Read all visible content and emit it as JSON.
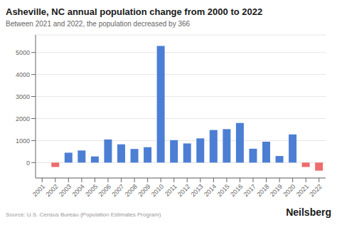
{
  "chart_data": {
    "type": "bar",
    "title": "Asheville, NC annual population change from 2000 to 2022",
    "subtitle": "Between 2021 and 2022, the population decreased by 366",
    "annotations": [
      "Source: U.S. Census Bureau (Population Estimates Program)",
      "Neilsberg"
    ],
    "categories": [
      "2001",
      "2002",
      "2003",
      "2004",
      "2005",
      "2006",
      "2007",
      "2008",
      "2009",
      "2010",
      "2011",
      "2012",
      "2013",
      "2014",
      "2015",
      "2016",
      "2017",
      "2018",
      "2019",
      "2020",
      "2021",
      "2022"
    ],
    "values": [
      0,
      -200,
      450,
      550,
      280,
      1050,
      830,
      620,
      700,
      5300,
      1020,
      870,
      1100,
      1480,
      1520,
      1800,
      630,
      950,
      300,
      1280,
      -200,
      -366
    ],
    "colors": [
      "#4C7FD4",
      "#EE6B6E",
      "#4C7FD4",
      "#4C7FD4",
      "#4C7FD4",
      "#4C7FD4",
      "#4C7FD4",
      "#4C7FD4",
      "#4C7FD4",
      "#4C7FD4",
      "#4C7FD4",
      "#4C7FD4",
      "#4C7FD4",
      "#4C7FD4",
      "#4C7FD4",
      "#4C7FD4",
      "#4C7FD4",
      "#4C7FD4",
      "#4C7FD4",
      "#4C7FD4",
      "#EE6B6E",
      "#EE6B6E"
    ],
    "ylim": [
      -700,
      5800
    ],
    "yticks": [
      0,
      1000,
      2000,
      3000,
      4000,
      5000
    ],
    "grid": true
  }
}
